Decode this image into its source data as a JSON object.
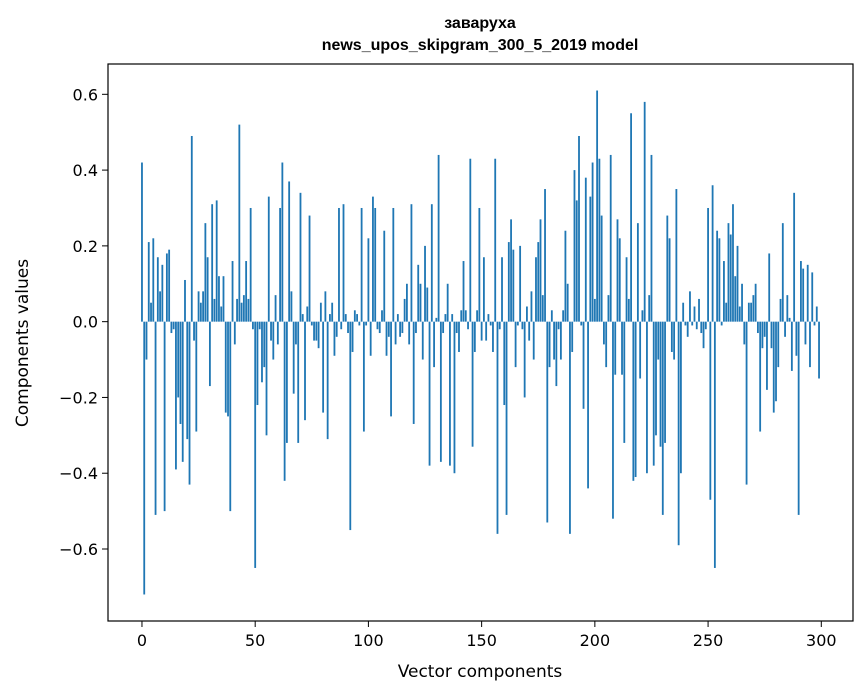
{
  "chart_data": {
    "type": "bar",
    "title": "заваруха",
    "subtitle": "news_upos_skipgram_300_5_2019 model",
    "xlabel": "Vector components",
    "ylabel": "Components values",
    "xlim": [
      -15,
      314
    ],
    "ylim": [
      -0.79,
      0.68
    ],
    "xticks": [
      0,
      50,
      100,
      150,
      200,
      250,
      300
    ],
    "yticks": [
      -0.6,
      -0.4,
      -0.2,
      0.0,
      0.2,
      0.4,
      0.6
    ],
    "ytick_labels": [
      "−0.6",
      "−0.4",
      "−0.2",
      "0.0",
      "0.2",
      "0.4",
      "0.6"
    ],
    "xtick_labels": [
      "0",
      "50",
      "100",
      "150",
      "200",
      "250",
      "300"
    ],
    "grid": false,
    "bar_color": "#1f77b4",
    "values": [
      0.42,
      -0.72,
      -0.1,
      0.21,
      0.05,
      0.22,
      -0.51,
      0.17,
      0.08,
      0.15,
      -0.5,
      0.18,
      0.19,
      -0.03,
      -0.02,
      -0.39,
      -0.2,
      -0.27,
      -0.37,
      0.11,
      -0.31,
      -0.43,
      0.49,
      -0.05,
      -0.29,
      0.08,
      0.05,
      0.08,
      0.26,
      0.17,
      -0.17,
      0.31,
      0.06,
      0.32,
      0.12,
      0.04,
      0.12,
      -0.24,
      -0.25,
      -0.5,
      0.16,
      -0.06,
      0.06,
      0.52,
      0.05,
      0.07,
      0.16,
      0.06,
      0.3,
      -0.02,
      -0.65,
      -0.22,
      -0.02,
      -0.16,
      -0.12,
      -0.3,
      0.33,
      -0.05,
      -0.1,
      0.07,
      -0.06,
      0.3,
      0.42,
      -0.42,
      -0.32,
      0.37,
      0.08,
      -0.19,
      -0.06,
      -0.32,
      0.34,
      0.02,
      -0.26,
      0.04,
      0.28,
      -0.01,
      -0.05,
      -0.05,
      -0.07,
      0.05,
      -0.24,
      0.08,
      -0.31,
      0.02,
      0.05,
      -0.09,
      -0.04,
      0.3,
      -0.02,
      0.31,
      0.02,
      -0.03,
      -0.55,
      -0.08,
      0.03,
      0.02,
      -0.01,
      0.3,
      -0.29,
      -0.01,
      0.22,
      -0.09,
      0.33,
      0.3,
      -0.02,
      -0.03,
      0.03,
      0.24,
      -0.09,
      -0.04,
      -0.25,
      0.3,
      -0.06,
      0.02,
      -0.04,
      -0.03,
      0.06,
      0.1,
      -0.06,
      0.31,
      -0.27,
      -0.03,
      0.15,
      0.1,
      -0.1,
      0.2,
      0.09,
      -0.38,
      0.31,
      -0.12,
      0.01,
      0.44,
      -0.37,
      -0.03,
      0.02,
      0.1,
      -0.38,
      0.02,
      -0.4,
      -0.03,
      -0.08,
      0.03,
      0.16,
      0.03,
      -0.02,
      0.43,
      -0.33,
      -0.08,
      0.03,
      0.3,
      -0.05,
      0.17,
      -0.05,
      0.02,
      -0.01,
      -0.08,
      0.43,
      -0.56,
      -0.02,
      0.17,
      -0.22,
      -0.51,
      0.21,
      0.27,
      0.19,
      -0.12,
      -0.01,
      0.2,
      -0.02,
      -0.2,
      0.04,
      -0.05,
      0.08,
      -0.1,
      0.17,
      0.21,
      0.27,
      0.07,
      0.35,
      -0.53,
      -0.12,
      0.03,
      -0.1,
      -0.17,
      -0.02,
      -0.1,
      0.03,
      0.24,
      0.1,
      -0.56,
      -0.08,
      0.4,
      0.32,
      0.49,
      -0.01,
      -0.23,
      0.38,
      -0.44,
      0.33,
      0.42,
      0.06,
      0.61,
      0.43,
      0.28,
      -0.06,
      -0.12,
      0.07,
      0.44,
      -0.52,
      -0.14,
      0.27,
      0.22,
      -0.14,
      -0.32,
      0.17,
      0.06,
      0.55,
      -0.42,
      -0.41,
      0.26,
      -0.15,
      0.03,
      0.58,
      -0.4,
      0.07,
      0.44,
      -0.38,
      -0.3,
      -0.1,
      -0.33,
      -0.51,
      -0.32,
      0.28,
      0.22,
      -0.08,
      -0.1,
      0.35,
      -0.59,
      -0.4,
      0.05,
      -0.01,
      -0.04,
      0.08,
      -0.01,
      0.04,
      -0.02,
      0.06,
      -0.03,
      -0.07,
      -0.02,
      0.3,
      -0.47,
      0.36,
      -0.65,
      0.24,
      0.22,
      -0.01,
      0.16,
      0.05,
      0.26,
      0.23,
      0.31,
      0.12,
      0.2,
      0.04,
      0.1,
      -0.06,
      -0.43,
      0.05,
      0.05,
      0.07,
      0.1,
      -0.03,
      -0.29,
      -0.07,
      -0.04,
      -0.18,
      0.18,
      -0.07,
      -0.24,
      -0.21,
      -0.12,
      0.06,
      0.26,
      -0.04,
      0.07,
      0.01,
      -0.13,
      0.34,
      -0.09,
      -0.51,
      0.16,
      0.14,
      -0.06,
      0.15,
      -0.12,
      0.13,
      -0.01,
      0.04,
      -0.15
    ]
  }
}
